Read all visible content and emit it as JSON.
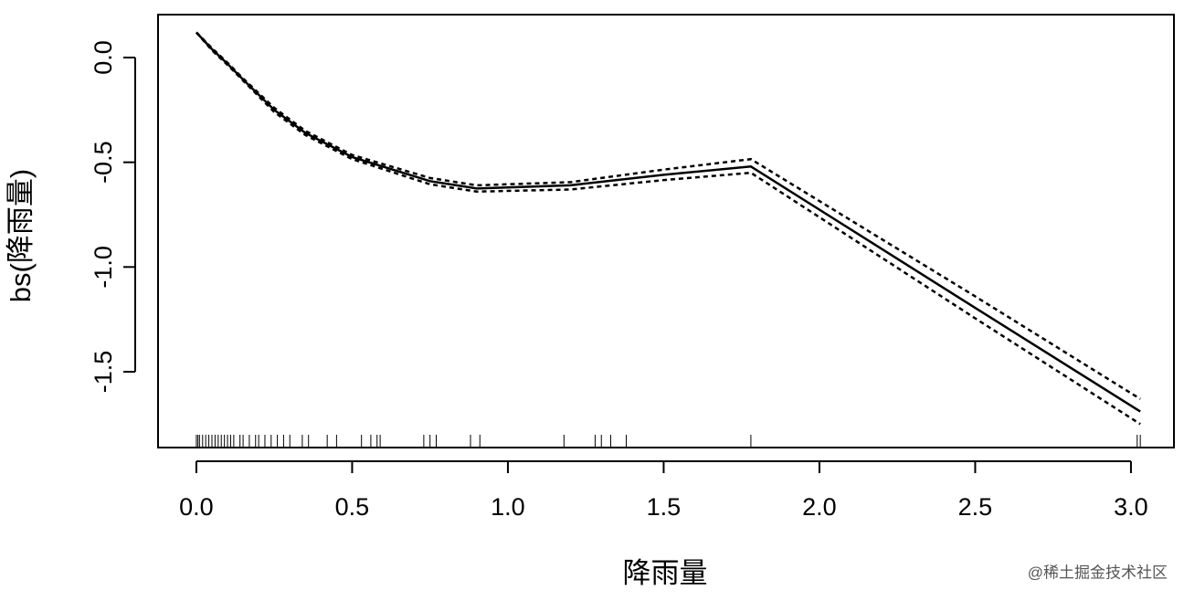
{
  "chart_data": {
    "type": "line",
    "xlabel": "降雨量",
    "ylabel": "bs(降雨量)",
    "x": [
      0.0,
      0.05,
      0.1,
      0.15,
      0.25,
      0.35,
      0.5,
      0.75,
      0.9,
      1.2,
      1.5,
      1.78,
      2.5,
      3.03
    ],
    "series": [
      {
        "color": "#000000",
        "dash": false,
        "values": [
          0.12,
          0.04,
          -0.03,
          -0.105,
          -0.25,
          -0.36,
          -0.475,
          -0.59,
          -0.625,
          -0.61,
          -0.56,
          -0.52,
          -1.195,
          -1.69
        ]
      },
      {
        "color": "#000000",
        "dash": true,
        "values": [
          0.12,
          0.045,
          -0.025,
          -0.1,
          -0.24,
          -0.35,
          -0.465,
          -0.575,
          -0.61,
          -0.595,
          -0.535,
          -0.485,
          -1.14,
          -1.63
        ]
      },
      {
        "color": "#000000",
        "dash": true,
        "values": [
          0.12,
          0.035,
          -0.035,
          -0.11,
          -0.26,
          -0.37,
          -0.485,
          -0.605,
          -0.64,
          -0.63,
          -0.585,
          -0.55,
          -1.245,
          -1.75
        ]
      }
    ],
    "rug": [
      0.0,
      0.005,
      0.01,
      0.02,
      0.03,
      0.04,
      0.05,
      0.06,
      0.07,
      0.08,
      0.09,
      0.1,
      0.11,
      0.12,
      0.14,
      0.15,
      0.17,
      0.19,
      0.2,
      0.22,
      0.24,
      0.26,
      0.28,
      0.3,
      0.34,
      0.36,
      0.42,
      0.45,
      0.53,
      0.56,
      0.58,
      0.59,
      0.73,
      0.75,
      0.77,
      0.88,
      0.91,
      1.18,
      1.28,
      1.3,
      1.33,
      1.38,
      1.78,
      3.02,
      3.03
    ],
    "xlim": [
      -0.123,
      3.138
    ],
    "ylim": [
      -1.862,
      0.205
    ],
    "xticks": [
      {
        "value": 0,
        "label": "0.0"
      },
      0.5,
      {
        "value": 1,
        "label": "1.0"
      },
      1.5,
      {
        "value": 2,
        "label": "2.0"
      },
      2.5,
      {
        "value": 3,
        "label": "3.0"
      }
    ],
    "yticks": [
      {
        "value": 0,
        "label": "0.0"
      },
      -0.5,
      {
        "value": -1,
        "label": "-1.0"
      },
      -1.5
    ],
    "watermark": "@稀土掘金技术社区"
  }
}
